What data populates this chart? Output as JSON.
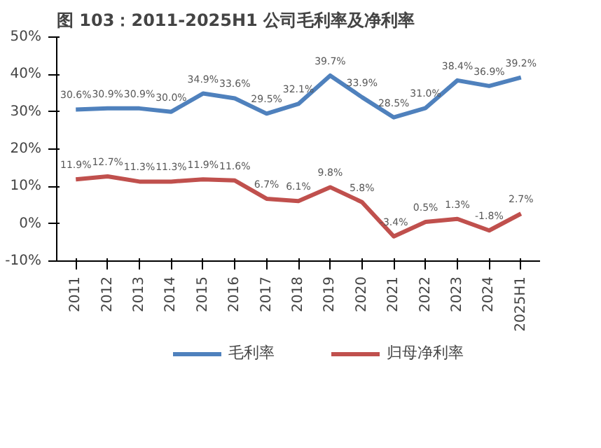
{
  "chart_data": {
    "type": "line",
    "title": "图 103：2011-2025H1 公司毛利率及净利率",
    "categories": [
      "2011",
      "2012",
      "2013",
      "2014",
      "2015",
      "2016",
      "2017",
      "2018",
      "2019",
      "2020",
      "2021",
      "2022",
      "2023",
      "2024",
      "2025H1"
    ],
    "series": [
      {
        "name": "毛利率",
        "color": "#4f81bd",
        "values": [
          30.6,
          30.9,
          30.9,
          30.0,
          34.9,
          33.6,
          29.5,
          32.1,
          39.7,
          33.9,
          28.5,
          31.0,
          38.4,
          36.9,
          39.2
        ],
        "value_labels": [
          "30.6%",
          "30.9%",
          "30.9%",
          "30.0%",
          "34.9%",
          "33.6%",
          "29.5%",
          "32.1%",
          "39.7%",
          "33.9%",
          "28.5%",
          "31.0%",
          "38.4%",
          "36.9%",
          "39.2%"
        ]
      },
      {
        "name": "归母净利率",
        "color": "#c0504d",
        "values": [
          11.9,
          12.7,
          11.3,
          11.3,
          11.9,
          11.6,
          6.7,
          6.1,
          9.8,
          5.8,
          -3.4,
          0.5,
          1.3,
          -1.8,
          2.7
        ],
        "value_labels": [
          "11.9%",
          "12.7%",
          "11.3%",
          "11.3%",
          "11.9%",
          "11.6%",
          "6.7%",
          "6.1%",
          "9.8%",
          "5.8%",
          "-3.4%",
          "0.5%",
          "1.3%",
          "-1.8%",
          "2.7%"
        ]
      }
    ],
    "ylim": [
      -10,
      50
    ],
    "yticks": [
      {
        "value": -10,
        "label": "-10%"
      },
      {
        "value": 0,
        "label": "0%"
      },
      {
        "value": 10,
        "label": "10%"
      },
      {
        "value": 20,
        "label": "20%"
      },
      {
        "value": 30,
        "label": "30%"
      },
      {
        "value": 40,
        "label": "40%"
      },
      {
        "value": 50,
        "label": "50%"
      }
    ],
    "grid": false,
    "legend": "bottom",
    "marker": "none",
    "line_style": "solid"
  }
}
